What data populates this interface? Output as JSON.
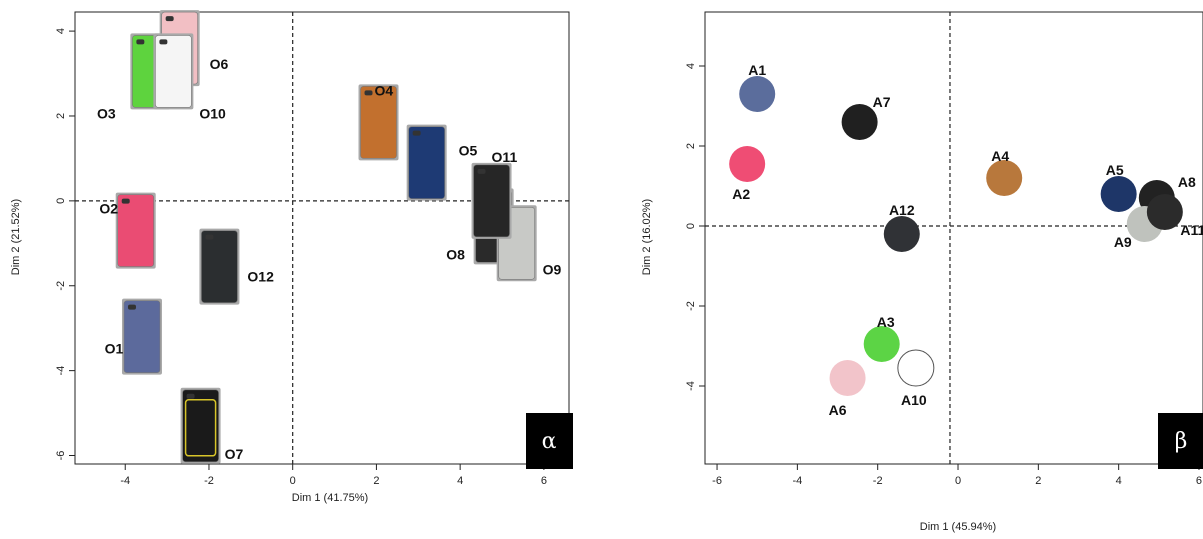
{
  "chart_data": [
    {
      "type": "scatter",
      "xlabel": "Dim 1 (41.75%)",
      "ylabel": "Dim 2 (21.52%)",
      "xlim": [
        -5.2,
        6.6
      ],
      "ylim": [
        -6.2,
        4.45
      ],
      "xticks": [
        -4,
        -2,
        0,
        2,
        4,
        6
      ],
      "yticks": [
        -6,
        -4,
        -2,
        0,
        2,
        4
      ],
      "grid": false,
      "reference_lines": {
        "x": 0,
        "y": 0
      },
      "badge": "α",
      "markers": "phone-case-images",
      "points": [
        {
          "label": "O1",
          "x": -3.6,
          "y": -3.2,
          "color": "#5c6a9c"
        },
        {
          "label": "O2",
          "x": -3.75,
          "y": -0.7,
          "color": "#ea4c73"
        },
        {
          "label": "O3",
          "x": -3.4,
          "y": 3.05,
          "color": "#5ed33e"
        },
        {
          "label": "O4",
          "x": 2.05,
          "y": 1.85,
          "color": "#c2702e"
        },
        {
          "label": "O5",
          "x": 3.2,
          "y": 0.9,
          "color": "#1e3a74"
        },
        {
          "label": "O6",
          "x": -2.7,
          "y": 3.6,
          "color": "#f2bfc4"
        },
        {
          "label": "O7",
          "x": -2.2,
          "y": -5.3,
          "color": "#1a1a1a"
        },
        {
          "label": "O8",
          "x": 4.8,
          "y": -0.6,
          "color": "#2a2a2a"
        },
        {
          "label": "O9",
          "x": 5.35,
          "y": -1.0,
          "color": "#c8c9c6"
        },
        {
          "label": "O10",
          "x": -2.85,
          "y": 3.05,
          "color": "#f5f5f5"
        },
        {
          "label": "O11",
          "x": 4.75,
          "y": 0.0,
          "color": "#262626"
        },
        {
          "label": "O12",
          "x": -1.75,
          "y": -1.55,
          "color": "#2b2e30"
        }
      ]
    },
    {
      "type": "scatter",
      "xlabel": "Dim 1 (45.94%)",
      "ylabel": "Dim 2 (16.02%)",
      "xlim": [
        -6.3,
        6.1
      ],
      "ylim": [
        -5.95,
        5.35
      ],
      "xticks": [
        -6,
        -4,
        -2,
        0,
        2,
        4,
        6
      ],
      "yticks": [
        -4,
        -2,
        0,
        2,
        4
      ],
      "grid": false,
      "reference_lines": {
        "x": -0.2,
        "y": 0
      },
      "badge": "β",
      "markers": "filled-circles",
      "points": [
        {
          "label": "A1",
          "x": -5.0,
          "y": 3.3,
          "color": "#5b6d9c"
        },
        {
          "label": "A2",
          "x": -5.25,
          "y": 1.55,
          "color": "#ef4d74"
        },
        {
          "label": "A3",
          "x": -1.9,
          "y": -2.95,
          "color": "#5cd445"
        },
        {
          "label": "A4",
          "x": 1.15,
          "y": 1.2,
          "color": "#b8783c"
        },
        {
          "label": "A5",
          "x": 4.0,
          "y": 0.8,
          "color": "#1e3668"
        },
        {
          "label": "A6",
          "x": -2.75,
          "y": -3.8,
          "color": "#f2c4ca"
        },
        {
          "label": "A7",
          "x": -2.45,
          "y": 2.6,
          "color": "#202020"
        },
        {
          "label": "A8",
          "x": 4.95,
          "y": 0.7,
          "color": "#222222"
        },
        {
          "label": "A9",
          "x": 4.65,
          "y": 0.05,
          "color": "#bfc2bd"
        },
        {
          "label": "A10",
          "x": -1.05,
          "y": -3.55,
          "color": "#ffffff"
        },
        {
          "label": "A11",
          "x": 5.15,
          "y": 0.35,
          "color": "#2b2b2b"
        },
        {
          "label": "A12",
          "x": -1.4,
          "y": -0.2,
          "color": "#303236"
        }
      ]
    }
  ]
}
